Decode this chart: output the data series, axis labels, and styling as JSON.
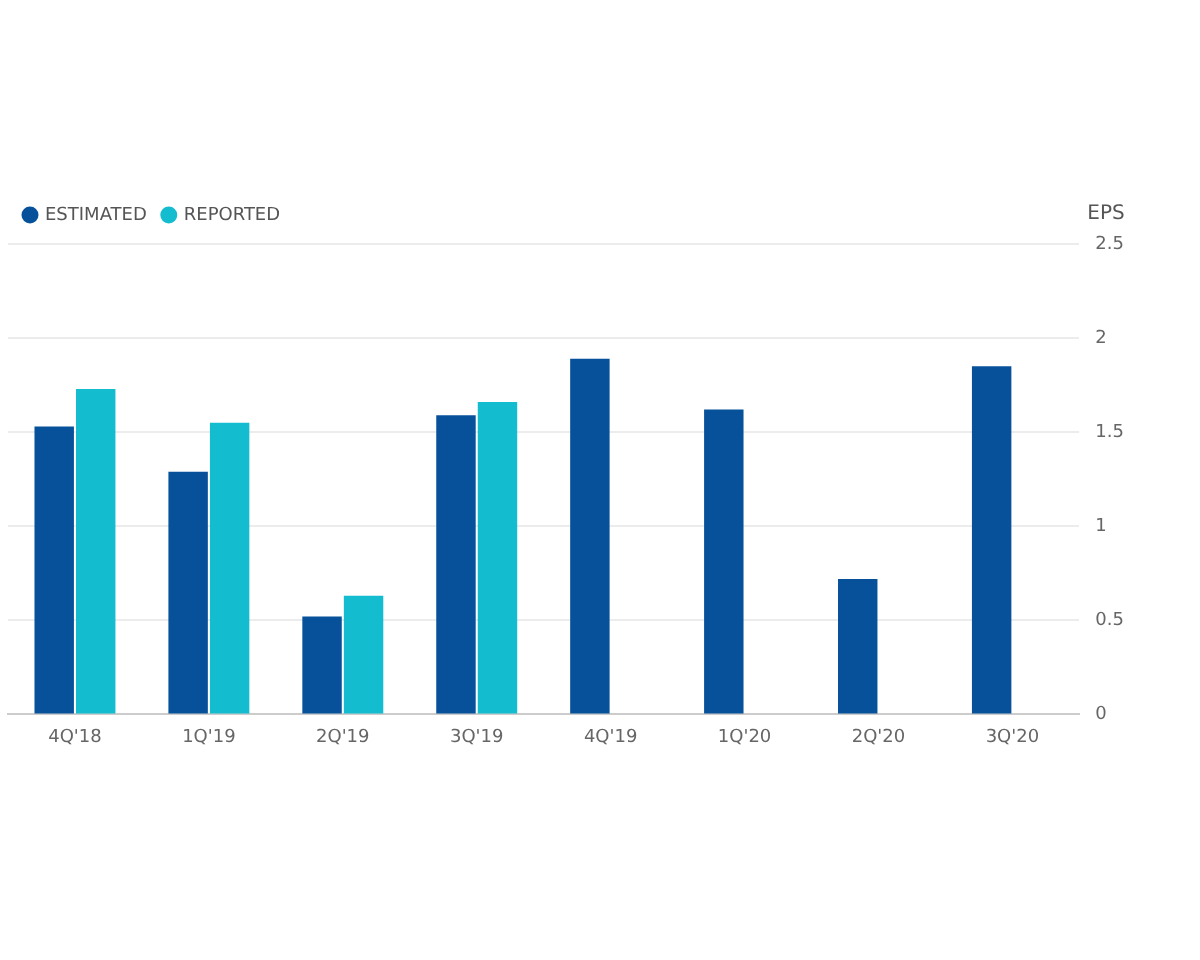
{
  "chart_data": {
    "type": "bar",
    "ylabel": "EPS",
    "categories": [
      "4Q'18",
      "1Q'19",
      "2Q'19",
      "3Q'19",
      "4Q'19",
      "1Q'20",
      "2Q'20",
      "3Q'20"
    ],
    "series": [
      {
        "name": "ESTIMATED",
        "color": "#06519a",
        "values": [
          1.53,
          1.29,
          0.52,
          1.59,
          1.89,
          1.62,
          0.72,
          1.85
        ]
      },
      {
        "name": "REPORTED",
        "color": "#14bcd0",
        "values": [
          1.73,
          1.55,
          0.63,
          1.66,
          null,
          null,
          null,
          null
        ]
      }
    ],
    "ylim": [
      0,
      2.5
    ],
    "yticks": [
      0,
      0.5,
      1,
      1.5,
      2,
      2.5
    ],
    "grid": "y",
    "legend": "top left",
    "marker": "circle"
  }
}
